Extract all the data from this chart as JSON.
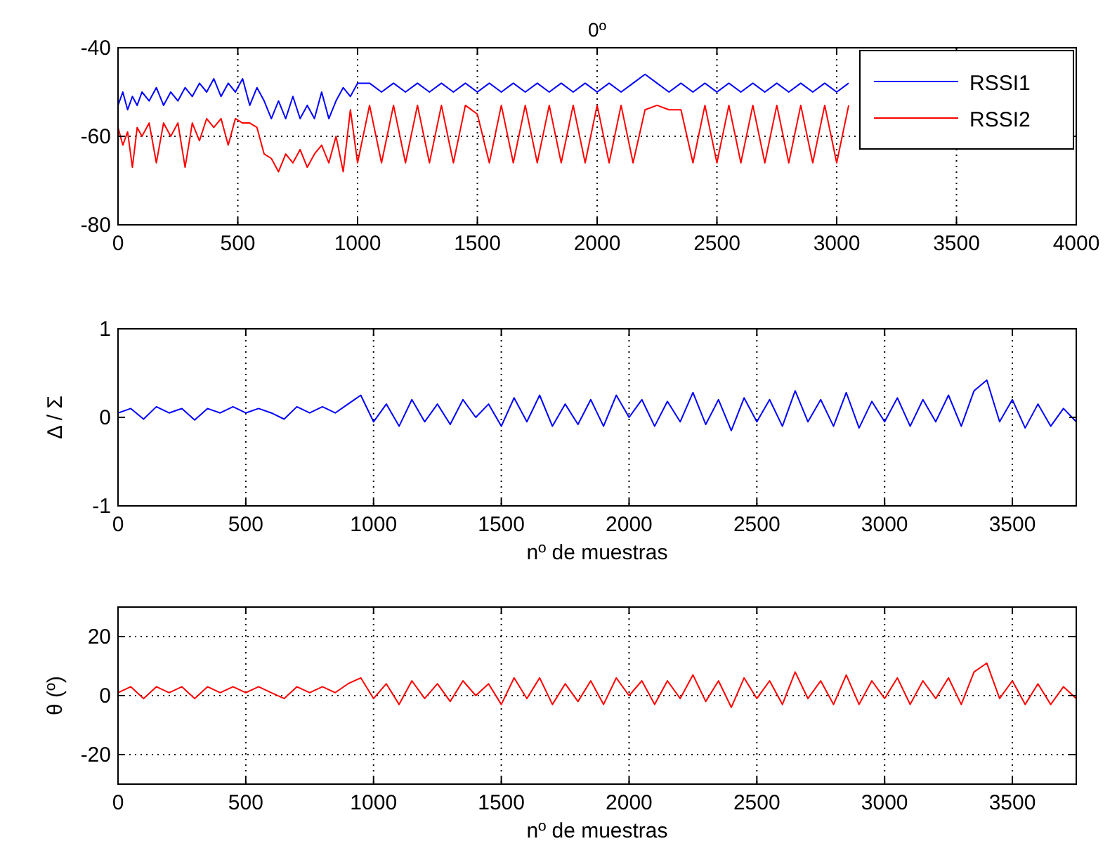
{
  "chart_data": [
    {
      "type": "line",
      "title": "0º",
      "xlim": [
        0,
        4000
      ],
      "ylim": [
        -80,
        -40
      ],
      "xticks": [
        0,
        500,
        1000,
        1500,
        2000,
        2500,
        3000,
        3500,
        4000
      ],
      "yticks": [
        -80,
        -60,
        -40
      ],
      "grid": true,
      "legend": "top right",
      "series": [
        {
          "name": "RSSI1",
          "color": "#0000ff",
          "x": [
            0,
            20,
            40,
            60,
            80,
            100,
            130,
            160,
            190,
            220,
            250,
            280,
            310,
            340,
            370,
            400,
            430,
            460,
            490,
            520,
            550,
            580,
            610,
            640,
            670,
            700,
            730,
            760,
            790,
            820,
            850,
            880,
            910,
            940,
            970,
            1000,
            1050,
            1100,
            1150,
            1200,
            1250,
            1300,
            1350,
            1400,
            1450,
            1500,
            1550,
            1600,
            1650,
            1700,
            1750,
            1800,
            1850,
            1900,
            1950,
            2000,
            2050,
            2100,
            2150,
            2200,
            2250,
            2300,
            2350,
            2400,
            2450,
            2500,
            2550,
            2600,
            2650,
            2700,
            2750,
            2800,
            2850,
            2900,
            2950,
            3000,
            3050
          ],
          "values": [
            -53,
            -50,
            -54,
            -51,
            -53,
            -50,
            -52,
            -49,
            -53,
            -50,
            -52,
            -49,
            -51,
            -48,
            -50,
            -47,
            -51,
            -48,
            -50,
            -47,
            -53,
            -49,
            -52,
            -56,
            -52,
            -56,
            -51,
            -56,
            -53,
            -56,
            -50,
            -56,
            -52,
            -49,
            -51,
            -48,
            -48,
            -50,
            -48,
            -50,
            -48,
            -50,
            -48,
            -50,
            -48,
            -50,
            -48,
            -50,
            -48,
            -50,
            -48,
            -50,
            -48,
            -50,
            -48,
            -50,
            -48,
            -50,
            -48,
            -46,
            -48,
            -50,
            -48,
            -50,
            -48,
            -50,
            -48,
            -50,
            -48,
            -50,
            -48,
            -50,
            -48,
            -50,
            -48,
            -50,
            -48
          ]
        },
        {
          "name": "RSSI2",
          "color": "#ff0000",
          "x": [
            0,
            20,
            40,
            60,
            80,
            100,
            130,
            160,
            190,
            220,
            250,
            280,
            310,
            340,
            370,
            400,
            430,
            460,
            490,
            520,
            550,
            580,
            610,
            640,
            670,
            700,
            730,
            760,
            790,
            820,
            850,
            880,
            910,
            940,
            970,
            1000,
            1050,
            1100,
            1150,
            1200,
            1250,
            1300,
            1350,
            1400,
            1450,
            1500,
            1550,
            1600,
            1650,
            1700,
            1750,
            1800,
            1850,
            1900,
            1950,
            2000,
            2050,
            2100,
            2150,
            2200,
            2250,
            2300,
            2350,
            2400,
            2450,
            2500,
            2550,
            2600,
            2650,
            2700,
            2750,
            2800,
            2850,
            2900,
            2950,
            3000,
            3050
          ],
          "values": [
            -58,
            -62,
            -59,
            -67,
            -58,
            -60,
            -57,
            -66,
            -57,
            -60,
            -57,
            -67,
            -57,
            -61,
            -56,
            -58,
            -56,
            -62,
            -56,
            -57,
            -57,
            -58,
            -64,
            -65,
            -68,
            -64,
            -66,
            -63,
            -67,
            -64,
            -62,
            -66,
            -60,
            -68,
            -54,
            -66,
            -53,
            -66,
            -53,
            -66,
            -53,
            -66,
            -53,
            -66,
            -53,
            -55,
            -66,
            -53,
            -66,
            -53,
            -66,
            -53,
            -66,
            -53,
            -66,
            -53,
            -66,
            -53,
            -66,
            -54,
            -53,
            -54,
            -54,
            -66,
            -53,
            -66,
            -53,
            -66,
            -53,
            -66,
            -53,
            -66,
            -53,
            -66,
            -53,
            -66,
            -53
          ]
        }
      ]
    },
    {
      "type": "line",
      "xlabel": "nº de muestras",
      "ylabel": "Δ / Σ",
      "xlim": [
        0,
        3750
      ],
      "ylim": [
        -1,
        1
      ],
      "xticks": [
        0,
        500,
        1000,
        1500,
        2000,
        2500,
        3000,
        3500
      ],
      "yticks": [
        -1,
        0,
        1
      ],
      "grid": "x",
      "series": [
        {
          "color": "#0000ff",
          "x": [
            0,
            50,
            100,
            150,
            200,
            250,
            300,
            350,
            400,
            450,
            500,
            550,
            600,
            650,
            700,
            750,
            800,
            850,
            900,
            950,
            1000,
            1050,
            1100,
            1150,
            1200,
            1250,
            1300,
            1350,
            1400,
            1450,
            1500,
            1550,
            1600,
            1650,
            1700,
            1750,
            1800,
            1850,
            1900,
            1950,
            2000,
            2050,
            2100,
            2150,
            2200,
            2250,
            2300,
            2350,
            2400,
            2450,
            2500,
            2550,
            2600,
            2650,
            2700,
            2750,
            2800,
            2850,
            2900,
            2950,
            3000,
            3050,
            3100,
            3150,
            3200,
            3250,
            3300,
            3350,
            3400,
            3450,
            3500,
            3550,
            3600,
            3650,
            3700,
            3750
          ],
          "values": [
            0.05,
            0.1,
            -0.02,
            0.12,
            0.05,
            0.1,
            -0.03,
            0.1,
            0.05,
            0.12,
            0.05,
            0.1,
            0.05,
            -0.02,
            0.12,
            0.05,
            0.12,
            0.05,
            0.15,
            0.25,
            -0.05,
            0.15,
            -0.1,
            0.2,
            -0.05,
            0.15,
            -0.08,
            0.2,
            0.0,
            0.15,
            -0.1,
            0.22,
            -0.05,
            0.25,
            -0.1,
            0.15,
            -0.08,
            0.2,
            -0.1,
            0.25,
            0.0,
            0.2,
            -0.1,
            0.18,
            -0.05,
            0.28,
            -0.08,
            0.2,
            -0.15,
            0.22,
            -0.05,
            0.2,
            -0.1,
            0.3,
            -0.05,
            0.2,
            -0.1,
            0.28,
            -0.12,
            0.18,
            -0.05,
            0.22,
            -0.1,
            0.2,
            -0.05,
            0.25,
            -0.1,
            0.3,
            0.42,
            -0.05,
            0.2,
            -0.12,
            0.15,
            -0.1,
            0.1,
            -0.05
          ]
        }
      ]
    },
    {
      "type": "line",
      "xlabel": "nº de muestras",
      "ylabel": "θ (º)",
      "xlim": [
        0,
        3750
      ],
      "ylim": [
        -30,
        30
      ],
      "xticks": [
        0,
        500,
        1000,
        1500,
        2000,
        2500,
        3000,
        3500
      ],
      "yticks": [
        -20,
        0,
        20
      ],
      "grid": true,
      "series": [
        {
          "color": "#ff0000",
          "x": [
            0,
            50,
            100,
            150,
            200,
            250,
            300,
            350,
            400,
            450,
            500,
            550,
            600,
            650,
            700,
            750,
            800,
            850,
            900,
            950,
            1000,
            1050,
            1100,
            1150,
            1200,
            1250,
            1300,
            1350,
            1400,
            1450,
            1500,
            1550,
            1600,
            1650,
            1700,
            1750,
            1800,
            1850,
            1900,
            1950,
            2000,
            2050,
            2100,
            2150,
            2200,
            2250,
            2300,
            2350,
            2400,
            2450,
            2500,
            2550,
            2600,
            2650,
            2700,
            2750,
            2800,
            2850,
            2900,
            2950,
            3000,
            3050,
            3100,
            3150,
            3200,
            3250,
            3300,
            3350,
            3400,
            3450,
            3500,
            3550,
            3600,
            3650,
            3700,
            3750
          ],
          "values": [
            1,
            3,
            -1,
            3,
            1,
            3,
            -1,
            3,
            1,
            3,
            1,
            3,
            1,
            -1,
            3,
            1,
            3,
            1,
            4,
            6,
            -1,
            4,
            -3,
            5,
            -1,
            4,
            -2,
            5,
            0,
            4,
            -3,
            6,
            -1,
            6,
            -3,
            4,
            -2,
            5,
            -3,
            6,
            0,
            5,
            -3,
            5,
            -1,
            7,
            -2,
            5,
            -4,
            6,
            -1,
            5,
            -3,
            8,
            -1,
            5,
            -3,
            7,
            -3,
            5,
            -1,
            6,
            -3,
            5,
            -1,
            6,
            -3,
            8,
            11,
            -1,
            5,
            -3,
            4,
            -3,
            3,
            -1
          ]
        }
      ]
    }
  ]
}
